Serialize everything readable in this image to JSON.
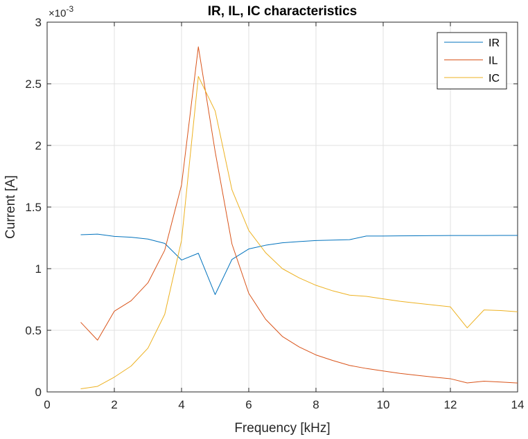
{
  "chart_data": {
    "type": "line",
    "title": "IR, IL, IC characteristics",
    "xlabel": "Frequency [kHz]",
    "ylabel": "Current [A]",
    "y_exponent_base": "×10",
    "y_exponent_power": "-3",
    "xlim": [
      0,
      14
    ],
    "ylim": [
      0,
      3
    ],
    "x_ticks": [
      "0",
      "2",
      "4",
      "6",
      "8",
      "10",
      "12",
      "14"
    ],
    "y_ticks": [
      "0",
      "0.5",
      "1",
      "1.5",
      "2",
      "2.5",
      "3"
    ],
    "grid": true,
    "legend_position": "top-right",
    "x": [
      1,
      1.5,
      2,
      2.5,
      3,
      3.5,
      4,
      4.5,
      5,
      5.5,
      6,
      6.5,
      7,
      7.5,
      8,
      8.5,
      9,
      9.5,
      10,
      10.5,
      11,
      11.5,
      12,
      12.5,
      13,
      13.5,
      14
    ],
    "series": [
      {
        "name": "IR",
        "color": "#0072BD",
        "values": [
          1.275,
          1.28,
          1.262,
          1.255,
          1.24,
          1.205,
          1.07,
          1.125,
          0.79,
          1.075,
          1.16,
          1.19,
          1.21,
          1.22,
          1.228,
          1.232,
          1.235,
          1.265,
          1.265,
          1.266,
          1.267,
          1.268,
          1.269,
          1.269,
          1.269,
          1.27,
          1.27
        ]
      },
      {
        "name": "IL",
        "color": "#D95319",
        "values": [
          0.565,
          0.42,
          0.655,
          0.74,
          0.885,
          1.15,
          1.68,
          2.8,
          1.95,
          1.2,
          0.8,
          0.59,
          0.45,
          0.365,
          0.3,
          0.255,
          0.215,
          0.19,
          0.17,
          0.15,
          0.135,
          0.12,
          0.107,
          0.073,
          0.087,
          0.08,
          0.072
        ]
      },
      {
        "name": "IC",
        "color": "#EDB120",
        "values": [
          0.025,
          0.045,
          0.12,
          0.21,
          0.355,
          0.63,
          1.23,
          2.56,
          2.28,
          1.64,
          1.31,
          1.13,
          1.0,
          0.925,
          0.865,
          0.82,
          0.785,
          0.775,
          0.755,
          0.735,
          0.72,
          0.705,
          0.69,
          0.52,
          0.665,
          0.66,
          0.65
        ]
      }
    ]
  }
}
